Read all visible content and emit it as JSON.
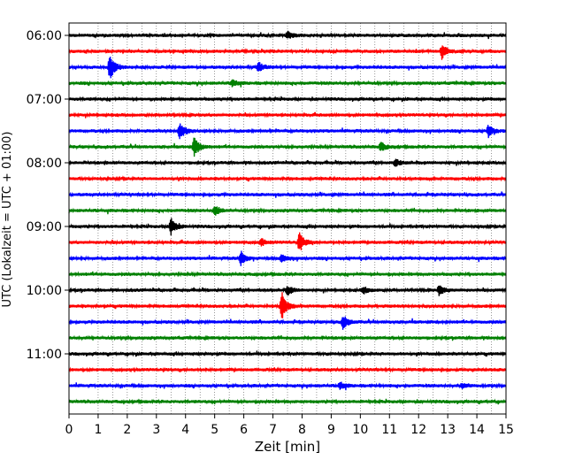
{
  "chart_data": {
    "type": "line",
    "title": "",
    "xlabel": "Zeit  [min]",
    "ylabel": "UTC (Lokalzeit = UTC + 01:00)",
    "xlim": [
      0,
      15
    ],
    "x_ticks": [
      "0",
      "1",
      "2",
      "3",
      "4",
      "5",
      "6",
      "7",
      "8",
      "9",
      "10",
      "11",
      "12",
      "13",
      "14",
      "15"
    ],
    "y_tick_labels": [
      "06:00",
      "07:00",
      "08:00",
      "09:00",
      "10:00",
      "11:00"
    ],
    "grid": "vertical dotted",
    "legend": "none",
    "trace_colors": [
      "#000000",
      "#ff0000",
      "#0000ff",
      "#008000"
    ],
    "series": [
      {
        "start": "06:00",
        "color": "#000000",
        "events": [
          {
            "t": 7.5,
            "amp": 4
          }
        ]
      },
      {
        "start": "06:15",
        "color": "#ff0000",
        "events": [
          {
            "t": 12.8,
            "amp": 8
          }
        ]
      },
      {
        "start": "06:30",
        "color": "#0000ff",
        "events": [
          {
            "t": 1.4,
            "amp": 14
          },
          {
            "t": 6.5,
            "amp": 6
          }
        ]
      },
      {
        "start": "06:45",
        "color": "#008000",
        "events": [
          {
            "t": 5.6,
            "amp": 4
          }
        ]
      },
      {
        "start": "07:00",
        "color": "#000000",
        "events": []
      },
      {
        "start": "07:15",
        "color": "#ff0000",
        "events": []
      },
      {
        "start": "07:30",
        "color": "#0000ff",
        "events": [
          {
            "t": 3.8,
            "amp": 11
          },
          {
            "t": 14.4,
            "amp": 7
          }
        ]
      },
      {
        "start": "07:45",
        "color": "#008000",
        "events": [
          {
            "t": 4.3,
            "amp": 11
          },
          {
            "t": 10.7,
            "amp": 5
          }
        ]
      },
      {
        "start": "08:00",
        "color": "#000000",
        "events": [
          {
            "t": 11.2,
            "amp": 4
          }
        ]
      },
      {
        "start": "08:15",
        "color": "#ff0000",
        "events": []
      },
      {
        "start": "08:30",
        "color": "#0000ff",
        "events": []
      },
      {
        "start": "08:45",
        "color": "#008000",
        "events": [
          {
            "t": 5.0,
            "amp": 6
          }
        ]
      },
      {
        "start": "09:00",
        "color": "#000000",
        "events": [
          {
            "t": 3.5,
            "amp": 9
          }
        ]
      },
      {
        "start": "09:15",
        "color": "#ff0000",
        "events": [
          {
            "t": 7.9,
            "amp": 11
          },
          {
            "t": 6.6,
            "amp": 4
          }
        ]
      },
      {
        "start": "09:30",
        "color": "#0000ff",
        "events": [
          {
            "t": 5.9,
            "amp": 8
          },
          {
            "t": 7.3,
            "amp": 4
          }
        ]
      },
      {
        "start": "09:45",
        "color": "#008000",
        "events": []
      },
      {
        "start": "10:00",
        "color": "#000000",
        "events": [
          {
            "t": 7.5,
            "amp": 5
          },
          {
            "t": 12.7,
            "amp": 6
          },
          {
            "t": 10.1,
            "amp": 4
          }
        ]
      },
      {
        "start": "10:15",
        "color": "#ff0000",
        "events": [
          {
            "t": 7.3,
            "amp": 16
          }
        ]
      },
      {
        "start": "10:30",
        "color": "#0000ff",
        "events": [
          {
            "t": 9.4,
            "amp": 8
          }
        ]
      },
      {
        "start": "10:45",
        "color": "#008000",
        "events": []
      },
      {
        "start": "11:00",
        "color": "#000000",
        "events": []
      },
      {
        "start": "11:15",
        "color": "#ff0000",
        "events": []
      },
      {
        "start": "11:30",
        "color": "#0000ff",
        "events": [
          {
            "t": 9.3,
            "amp": 4
          },
          {
            "t": 13.5,
            "amp": 3
          }
        ]
      },
      {
        "start": "11:45",
        "color": "#008000",
        "events": []
      }
    ]
  }
}
